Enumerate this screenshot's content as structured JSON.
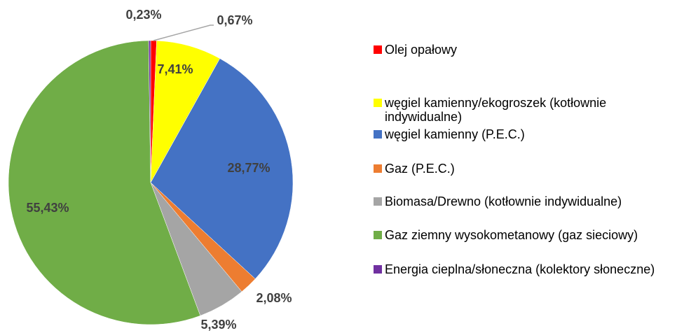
{
  "chart_data": {
    "type": "pie",
    "categories": [
      "Olej opałowy",
      "węgiel kamienny/ekogroszek (kotłownie indywidualne)",
      "węgiel kamienny (P.E.C.)",
      "Gaz (P.E.C.)",
      "Biomasa/Drewno (kotłownie indywidualne)",
      "Gaz ziemny wysokometanowy (gaz sieciowy)",
      "Energia cieplna/słoneczna (kolektory słoneczne)"
    ],
    "values": [
      0.67,
      7.41,
      28.77,
      2.08,
      5.39,
      55.43,
      0.23
    ],
    "value_labels": [
      "0,67%",
      "7,41%",
      "28,77%",
      "2,08%",
      "5,39%",
      "55,43%",
      "0,23%"
    ],
    "colors": [
      "#ff0000",
      "#ffff00",
      "#4472c4",
      "#ed7d31",
      "#a5a5a5",
      "#70ad47",
      "#7030a0"
    ],
    "legend": "right"
  }
}
